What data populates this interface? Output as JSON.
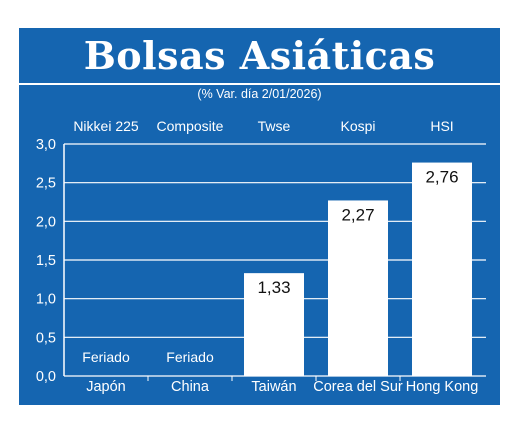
{
  "colors": {
    "background": "#1565b0",
    "bars": "#ffffff",
    "bar_label_text": "#111111",
    "text": "#ffffff"
  },
  "chart_data": {
    "type": "bar",
    "title": "Bolsas Asiáticas",
    "subtitle": "(% Var. día  2/01/2026)",
    "indices": [
      "Nikkei 225",
      "Composite",
      "Twse",
      "Kospi",
      "HSI"
    ],
    "categories": [
      "Japón",
      "China",
      "Taiwán",
      "Corea del Sur",
      "Hong Kong"
    ],
    "values": [
      null,
      null,
      1.33,
      2.27,
      2.76
    ],
    "value_labels": [
      "Feriado",
      "Feriado",
      "1,33",
      "2,27",
      "2,76"
    ],
    "ylim": [
      0,
      3
    ],
    "yticks": [
      0,
      0.5,
      1,
      1.5,
      2,
      2.5,
      3
    ],
    "ytick_labels": [
      "0,0",
      "0,5",
      "1,0",
      "1,5",
      "2,0",
      "2,5",
      "3,0"
    ],
    "grid": true,
    "legend": "none"
  }
}
